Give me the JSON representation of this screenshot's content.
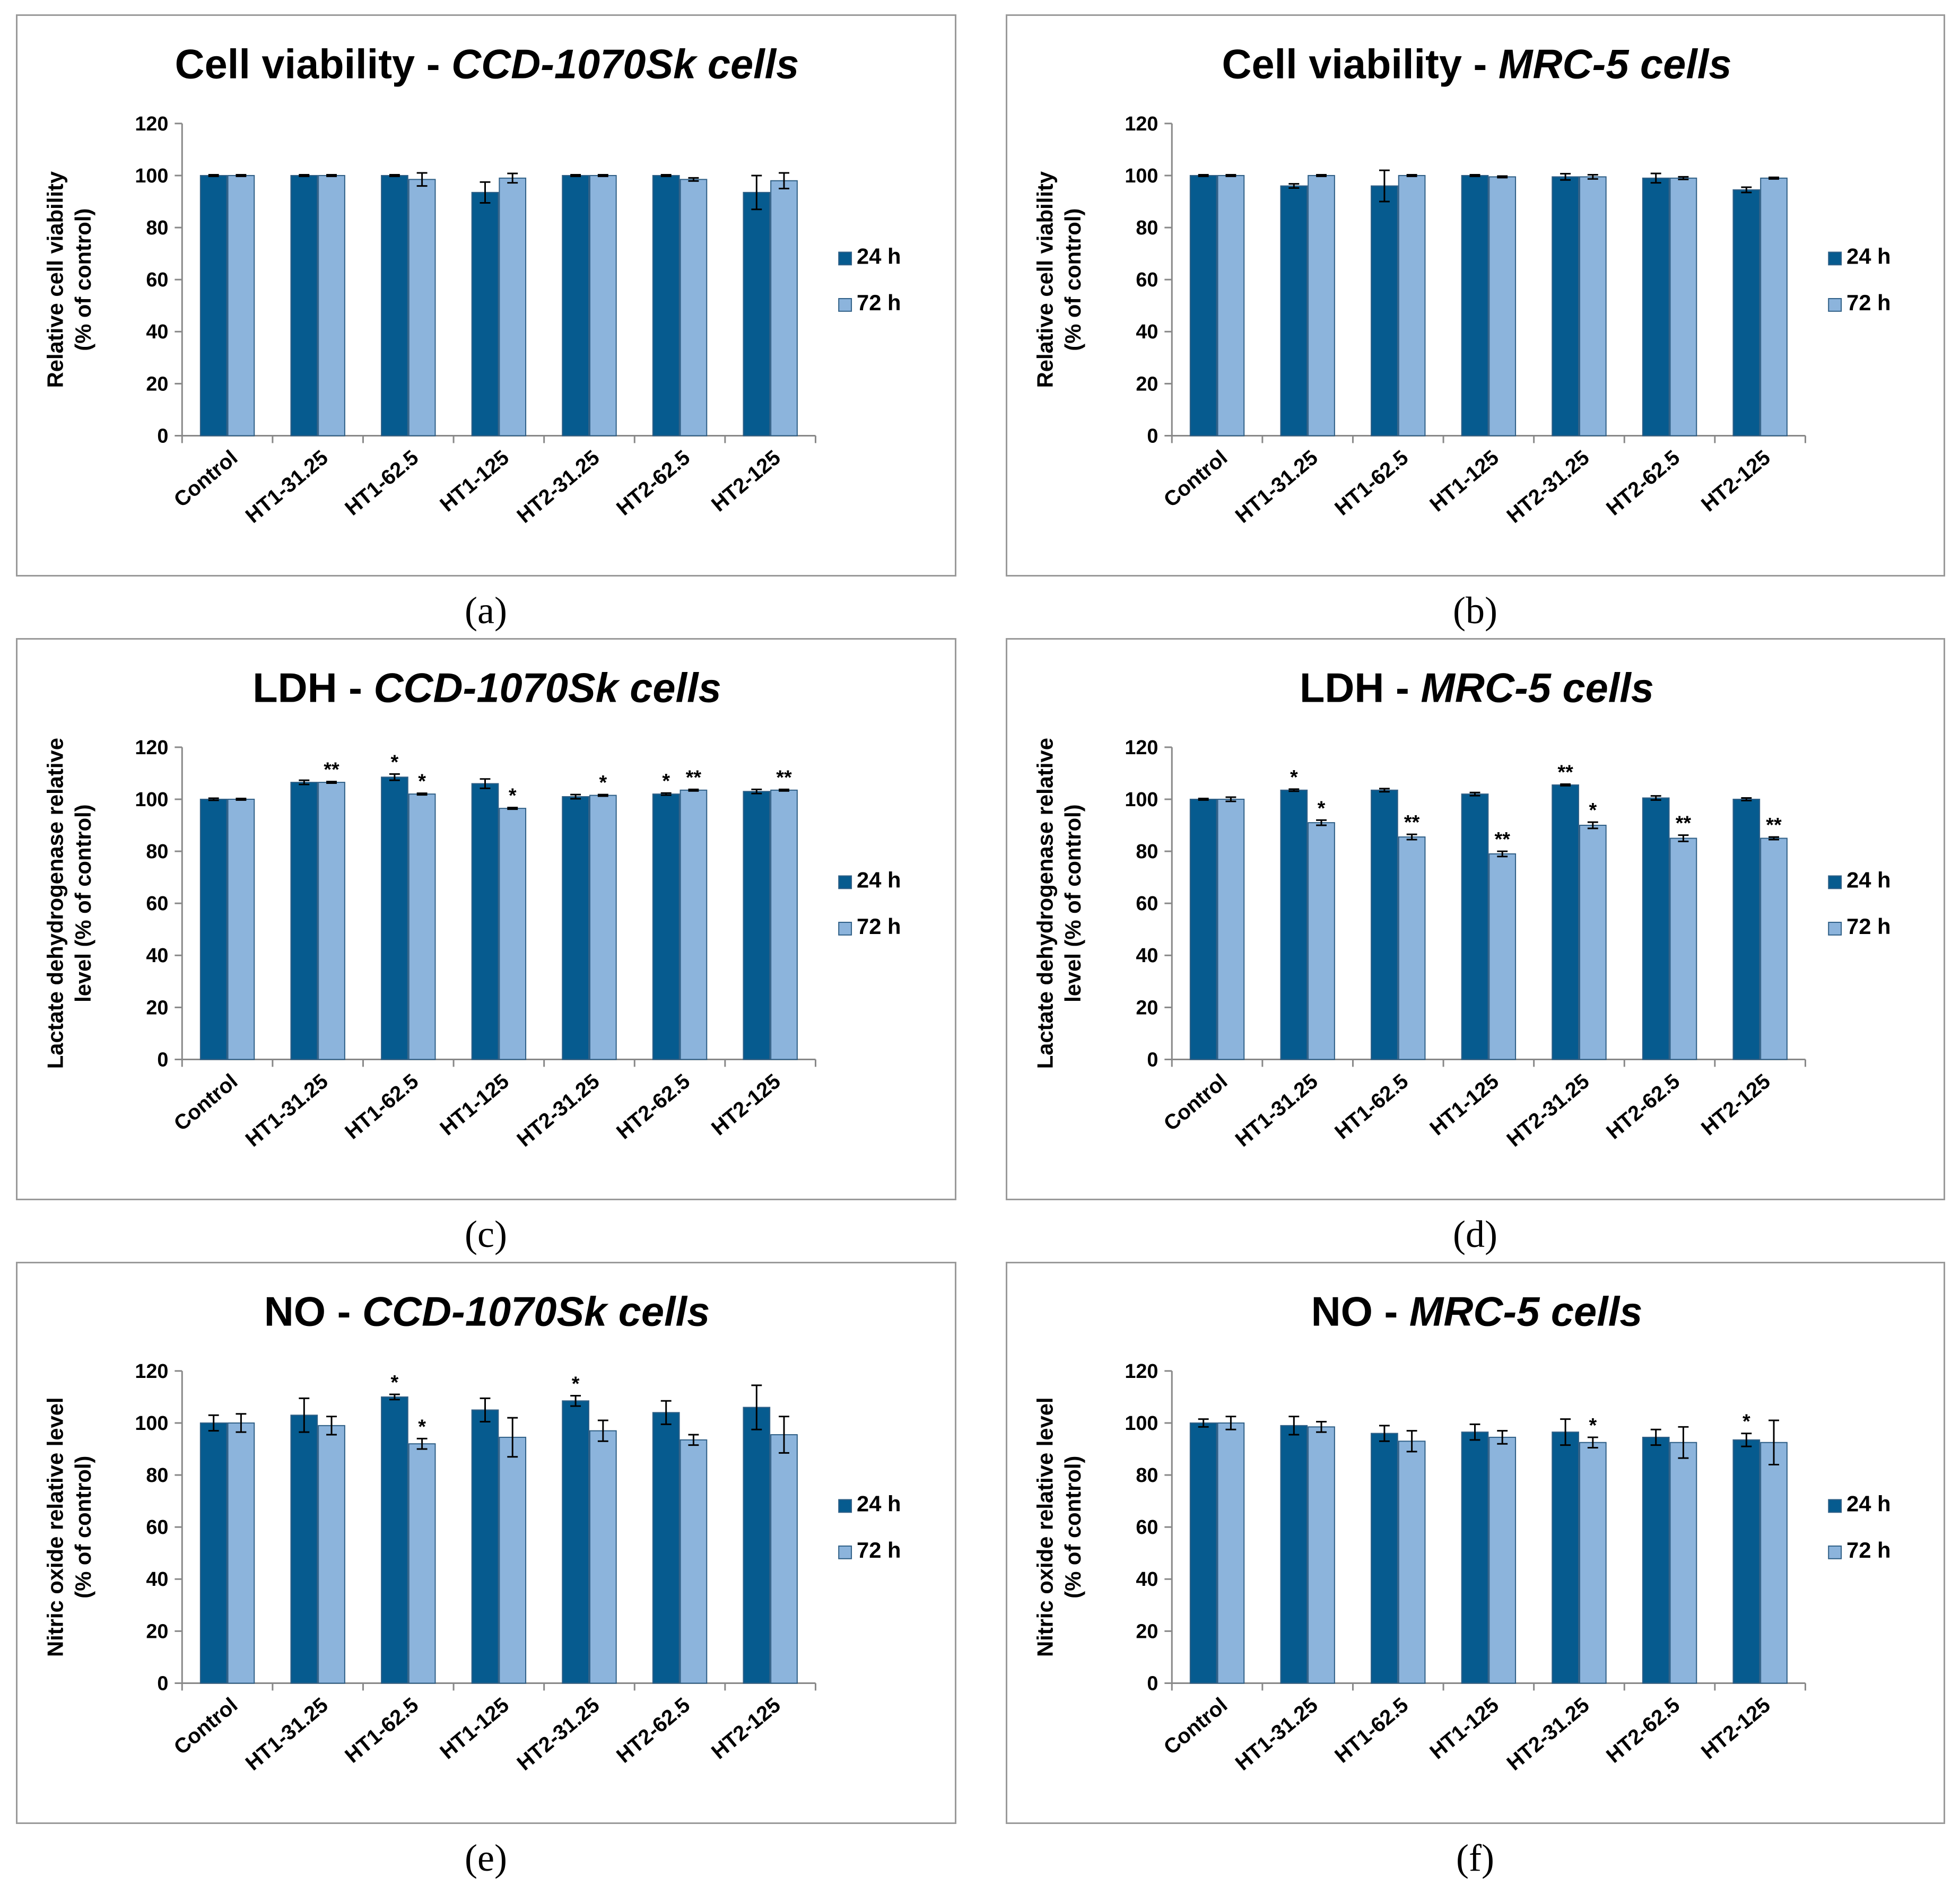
{
  "colors": {
    "series_24h": "#065B8F",
    "series_72h": "#8CB4DC",
    "axis": "#888888",
    "frame": "#9a9a9a"
  },
  "panels": [
    {
      "caption": "(a)",
      "title_prefix": "Cell viability - ",
      "title_italic": "CCD-1070Sk cells"
    },
    {
      "caption": "(b)",
      "title_prefix": "Cell viability - ",
      "title_italic": "MRC-5 cells"
    },
    {
      "caption": "(c)",
      "title_prefix": "LDH - ",
      "title_italic": "CCD-1070Sk cells"
    },
    {
      "caption": "(d)",
      "title_prefix": "LDH - ",
      "title_italic": "MRC-5 cells"
    },
    {
      "caption": "(e)",
      "title_prefix": "NO - ",
      "title_italic": "CCD-1070Sk cells"
    },
    {
      "caption": "(f)",
      "title_prefix": "NO - ",
      "title_italic": "MRC-5 cells"
    }
  ],
  "chart_data": [
    {
      "type": "bar",
      "title": "Cell viability - CCD-1070Sk cells",
      "ylabel_lines": [
        "Relative cell viability",
        "(% of control)"
      ],
      "ylim": [
        0,
        120
      ],
      "yticks": [
        0,
        20,
        40,
        60,
        80,
        100,
        120
      ],
      "categories": [
        "Control",
        "HT1-31.25",
        "HT1-62.5",
        "HT1-125",
        "HT2-31.25",
        "HT2-62.5",
        "HT2-125"
      ],
      "series": [
        {
          "name": "24 h",
          "values": [
            100,
            100,
            100,
            93.5,
            100,
            100,
            93.5
          ],
          "errors": [
            0.3,
            0.3,
            0.3,
            4,
            0.3,
            0.3,
            6.5
          ],
          "sig": [
            "",
            "",
            "",
            "",
            "",
            "",
            ""
          ]
        },
        {
          "name": "72 h",
          "values": [
            100,
            100,
            98.5,
            99,
            100,
            98.5,
            98
          ],
          "errors": [
            0.3,
            0.3,
            2.5,
            1.8,
            0.3,
            0.6,
            3
          ],
          "sig": [
            "",
            "",
            "",
            "",
            "",
            "",
            ""
          ]
        }
      ]
    },
    {
      "type": "bar",
      "title": "Cell viability - MRC-5 cells",
      "ylabel_lines": [
        "Relative cell viability",
        "(% of control)"
      ],
      "ylim": [
        0,
        120
      ],
      "yticks": [
        0,
        20,
        40,
        60,
        80,
        100,
        120
      ],
      "categories": [
        "Control",
        "HT1-31.25",
        "HT1-62.5",
        "HT1-125",
        "HT2-31.25",
        "HT2-62.5",
        "HT2-125"
      ],
      "series": [
        {
          "name": "24 h",
          "values": [
            100,
            96,
            96,
            100,
            99.5,
            99,
            94.5
          ],
          "errors": [
            0.3,
            0.8,
            6,
            0.3,
            1.2,
            1.8,
            1
          ],
          "sig": [
            "",
            "",
            "",
            "",
            "",
            "",
            ""
          ]
        },
        {
          "name": "72 h",
          "values": [
            100,
            100,
            100,
            99.5,
            99.5,
            99,
            99
          ],
          "errors": [
            0.3,
            0.3,
            0.3,
            0.3,
            0.8,
            0.5,
            0.3
          ],
          "sig": [
            "",
            "",
            "",
            "",
            "",
            "",
            ""
          ]
        }
      ]
    },
    {
      "type": "bar",
      "title": "LDH - CCD-1070Sk cells",
      "ylabel_lines": [
        "Lactate dehydrogenase relative",
        "level (% of control)"
      ],
      "ylim": [
        0,
        120
      ],
      "yticks": [
        0,
        20,
        40,
        60,
        80,
        100,
        120
      ],
      "categories": [
        "Control",
        "HT1-31.25",
        "HT1-62.5",
        "HT1-125",
        "HT2-31.25",
        "HT2-62.5",
        "HT2-125"
      ],
      "series": [
        {
          "name": "24 h",
          "values": [
            100,
            106.5,
            108.5,
            106,
            101,
            102,
            103
          ],
          "errors": [
            0.4,
            0.8,
            1.2,
            1.8,
            0.8,
            0.4,
            0.8
          ],
          "sig": [
            "",
            "",
            "*",
            "",
            "",
            "*",
            ""
          ]
        },
        {
          "name": "72 h",
          "values": [
            100,
            106.5,
            102,
            96.5,
            101.5,
            103.5,
            103.5
          ],
          "errors": [
            0.3,
            0.3,
            0.3,
            0.3,
            0.3,
            0.3,
            0.3
          ],
          "sig": [
            "",
            "**",
            "*",
            "*",
            "*",
            "**",
            "**"
          ]
        }
      ]
    },
    {
      "type": "bar",
      "title": "LDH - MRC-5 cells",
      "ylabel_lines": [
        "Lactate dehydrogenase relative",
        "level (% of control)"
      ],
      "ylim": [
        0,
        120
      ],
      "yticks": [
        0,
        20,
        40,
        60,
        80,
        100,
        120
      ],
      "categories": [
        "Control",
        "HT1-31.25",
        "HT1-62.5",
        "HT1-125",
        "HT2-31.25",
        "HT2-62.5",
        "HT2-125"
      ],
      "series": [
        {
          "name": "24 h",
          "values": [
            100,
            103.5,
            103.5,
            102,
            105.5,
            100.5,
            100
          ],
          "errors": [
            0.3,
            0.4,
            0.6,
            0.6,
            0.3,
            0.8,
            0.5
          ],
          "sig": [
            "",
            "*",
            "",
            "",
            "**",
            "",
            ""
          ]
        },
        {
          "name": "72 h",
          "values": [
            100,
            91,
            85.5,
            79,
            90,
            85,
            85
          ],
          "errors": [
            0.8,
            1,
            1,
            1,
            1.2,
            1.2,
            0.5
          ],
          "sig": [
            "",
            "*",
            "**",
            "**",
            "*",
            "**",
            "**"
          ]
        }
      ]
    },
    {
      "type": "bar",
      "title": "NO - CCD-1070Sk cells",
      "ylabel_lines": [
        "Nitric oxide relative level",
        "(% of control)"
      ],
      "ylim": [
        0,
        120
      ],
      "yticks": [
        0,
        20,
        40,
        60,
        80,
        100,
        120
      ],
      "categories": [
        "Control",
        "HT1-31.25",
        "HT1-62.5",
        "HT1-125",
        "HT2-31.25",
        "HT2-62.5",
        "HT2-125"
      ],
      "series": [
        {
          "name": "24 h",
          "values": [
            100,
            103,
            110,
            105,
            108.5,
            104,
            106
          ],
          "errors": [
            3,
            6.5,
            1,
            4.5,
            2,
            4.5,
            8.5
          ],
          "sig": [
            "",
            "",
            "*",
            "",
            "*",
            "",
            ""
          ]
        },
        {
          "name": "72 h",
          "values": [
            100,
            99,
            92,
            94.5,
            97,
            93.5,
            95.5
          ],
          "errors": [
            3.5,
            3.5,
            2,
            7.5,
            4,
            2,
            7
          ],
          "sig": [
            "",
            "",
            "*",
            "",
            "",
            "",
            ""
          ]
        }
      ]
    },
    {
      "type": "bar",
      "title": "NO - MRC-5 cells",
      "ylabel_lines": [
        "Nitric oxide relative level",
        "(% of control)"
      ],
      "ylim": [
        0,
        120
      ],
      "yticks": [
        0,
        20,
        40,
        60,
        80,
        100,
        120
      ],
      "categories": [
        "Control",
        "HT1-31.25",
        "HT1-62.5",
        "HT1-125",
        "HT2-31.25",
        "HT2-62.5",
        "HT2-125"
      ],
      "series": [
        {
          "name": "24 h",
          "values": [
            100,
            99,
            96,
            96.5,
            96.5,
            94.5,
            93.5
          ],
          "errors": [
            1.5,
            3.5,
            3,
            3,
            5,
            3,
            2.5
          ],
          "sig": [
            "",
            "",
            "",
            "",
            "",
            "",
            "*"
          ]
        },
        {
          "name": "72 h",
          "values": [
            100,
            98.5,
            93,
            94.5,
            92.5,
            92.5,
            92.5
          ],
          "errors": [
            2.5,
            2,
            4,
            2.5,
            2,
            6,
            8.5
          ],
          "sig": [
            "",
            "",
            "",
            "",
            "*",
            "",
            ""
          ]
        }
      ]
    }
  ]
}
